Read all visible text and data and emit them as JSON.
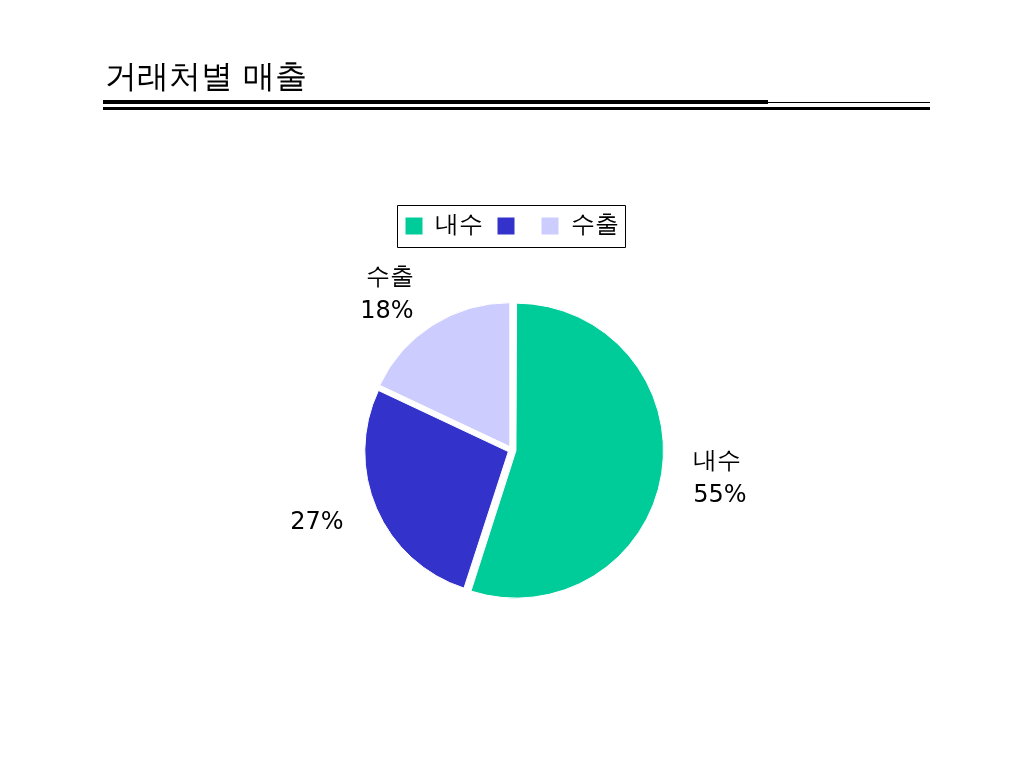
{
  "chart_data": {
    "type": "pie",
    "title": "거래처별 매출",
    "categories": [
      "내수",
      null,
      "수출"
    ],
    "values": [
      55,
      27,
      18
    ],
    "colors": [
      "#00cc99",
      "#3333cc",
      "#ccccff"
    ],
    "value_labels": [
      "55%",
      "27%",
      "18%"
    ],
    "legend": "top"
  }
}
